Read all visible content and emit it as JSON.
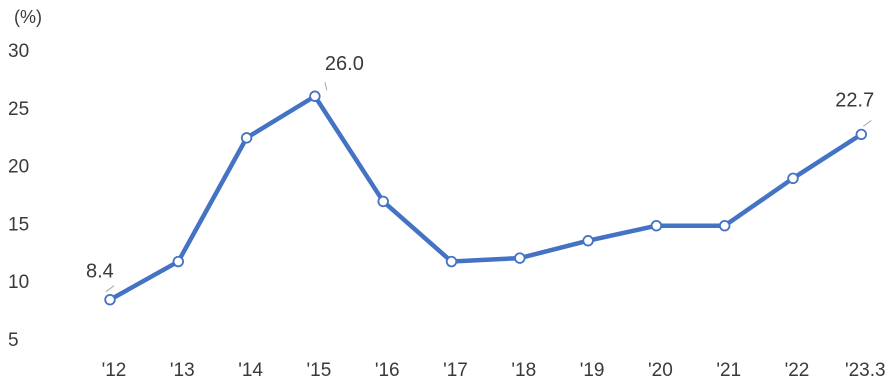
{
  "chart_data": {
    "type": "line",
    "unit_label": "(%)",
    "categories": [
      "'12",
      "'13",
      "'14",
      "'15",
      "'16",
      "'17",
      "'18",
      "'19",
      "'20",
      "'21",
      "'22",
      "'23.3"
    ],
    "series": [
      {
        "values": [
          8.4,
          11.7,
          22.4,
          26.0,
          16.9,
          11.7,
          12.0,
          13.5,
          14.8,
          14.8,
          18.9,
          22.7
        ]
      }
    ],
    "data_labels": [
      {
        "index": 0,
        "text": "8.4"
      },
      {
        "index": 3,
        "text": "26.0"
      },
      {
        "index": 11,
        "text": "22.7"
      }
    ],
    "yticks": [
      5,
      10,
      15,
      20,
      25,
      30
    ],
    "ylim": [
      5,
      30
    ],
    "grid": false,
    "legend": "none",
    "colors": {
      "line": "#4472c4",
      "marker_fill": "#ffffff",
      "leader": "#a6a6a6"
    }
  }
}
